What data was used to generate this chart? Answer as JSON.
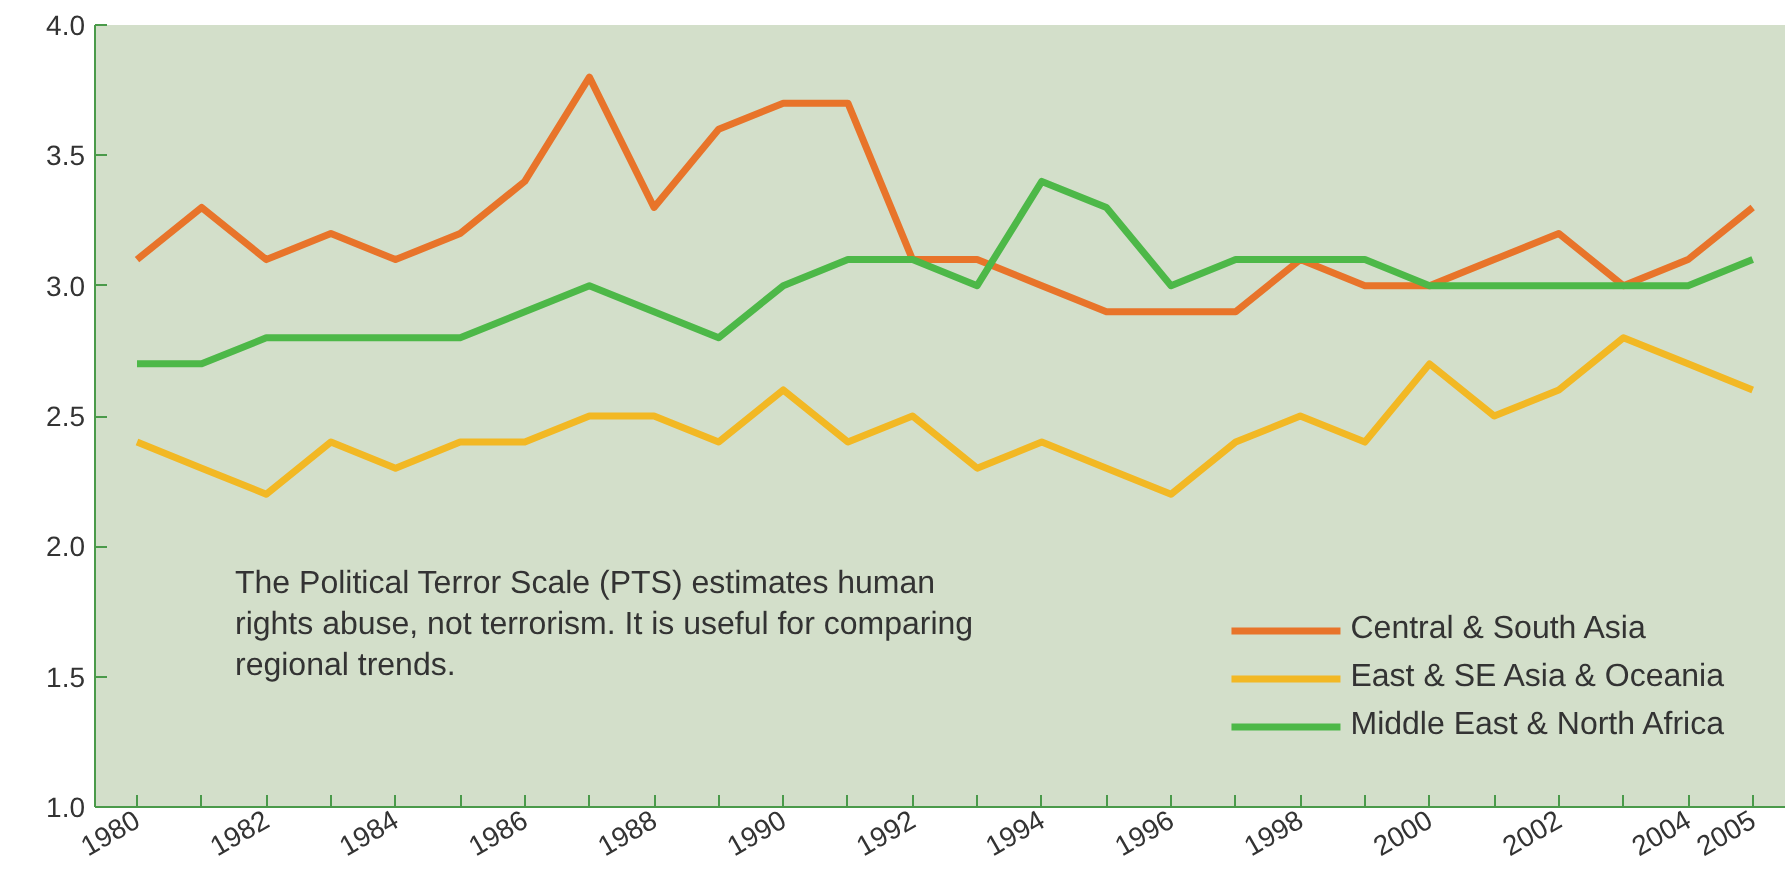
{
  "chart_data": {
    "type": "line",
    "x": [
      1980,
      1981,
      1982,
      1983,
      1984,
      1985,
      1986,
      1987,
      1988,
      1989,
      1990,
      1991,
      1992,
      1993,
      1994,
      1995,
      1996,
      1997,
      1998,
      1999,
      2000,
      2001,
      2002,
      2003,
      2004,
      2005
    ],
    "series": [
      {
        "name": "Central & South Asia",
        "color": "#e8742a",
        "values": [
          3.1,
          3.3,
          3.1,
          3.2,
          3.1,
          3.2,
          3.4,
          3.8,
          3.3,
          3.6,
          3.7,
          3.7,
          3.1,
          3.1,
          3.0,
          2.9,
          2.9,
          2.9,
          3.1,
          3.0,
          3.0,
          3.1,
          3.2,
          3.0,
          3.1,
          3.3
        ]
      },
      {
        "name": "East & SE Asia & Oceania",
        "color": "#f2b824",
        "values": [
          2.4,
          2.3,
          2.2,
          2.4,
          2.3,
          2.4,
          2.4,
          2.5,
          2.5,
          2.4,
          2.6,
          2.4,
          2.5,
          2.3,
          2.4,
          2.3,
          2.2,
          2.4,
          2.5,
          2.4,
          2.7,
          2.5,
          2.6,
          2.8,
          2.7,
          2.6
        ]
      },
      {
        "name": "Middle East & North Africa",
        "color": "#4db848",
        "values": [
          2.7,
          2.7,
          2.8,
          2.8,
          2.8,
          2.8,
          2.9,
          3.0,
          2.9,
          2.8,
          3.0,
          3.1,
          3.1,
          3.0,
          3.4,
          3.3,
          3.0,
          3.1,
          3.1,
          3.1,
          3.0,
          3.0,
          3.0,
          3.0,
          3.0,
          3.1
        ]
      }
    ],
    "xlim": [
      1979.35,
      2005.5
    ],
    "xticks": [
      1980,
      {
        "value": 1981,
        "label": null
      },
      1982,
      {
        "value": 1983,
        "label": null
      },
      1984,
      {
        "value": 1985,
        "label": null
      },
      1986,
      {
        "value": 1987,
        "label": null
      },
      1988,
      {
        "value": 1989,
        "label": null
      },
      1990,
      {
        "value": 1991,
        "label": null
      },
      1992,
      {
        "value": 1993,
        "label": null
      },
      1994,
      {
        "value": 1995,
        "label": null
      },
      1996,
      {
        "value": 1997,
        "label": null
      },
      1998,
      {
        "value": 1999,
        "label": null
      },
      2000,
      {
        "value": 2001,
        "label": null
      },
      2002,
      {
        "value": 2003,
        "label": null
      },
      2004,
      2005
    ],
    "ylim": [
      1.0,
      4.0
    ],
    "yticks": [
      {
        "value": 1.0,
        "label": "1.0"
      },
      1.5,
      {
        "value": 2.0,
        "label": "2.0"
      },
      2.5,
      {
        "value": 3.0,
        "label": "3.0"
      },
      3.5,
      {
        "value": 4.0,
        "label": "4.0"
      }
    ],
    "annotations": [
      "The Political Terror Scale (PTS) estimates human\nrights abuse, not terrorism. It is useful for comparing\nregional trends."
    ],
    "legend": "bottom right",
    "grid": false,
    "line_style": "solid"
  }
}
